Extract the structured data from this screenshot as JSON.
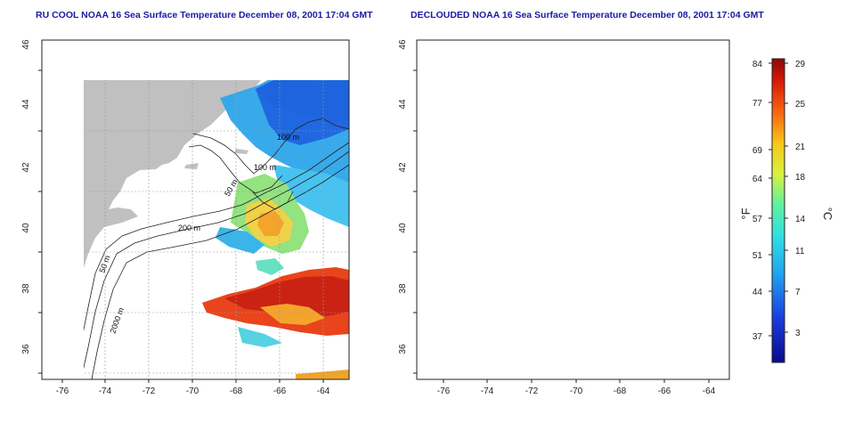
{
  "titles": {
    "left": "RU COOL NOAA 16 Sea Surface Temperature December 08, 2001 17:04 GMT",
    "right": "DECLOUDED NOAA 16 Sea Surface Temperature December 08, 2001 17:04 GMT"
  },
  "axes": {
    "x_ticks": [
      "-76",
      "-74",
      "-72",
      "-70",
      "-68",
      "-66",
      "-64"
    ],
    "y_ticks": [
      "36",
      "38",
      "40",
      "42",
      "44",
      "46"
    ]
  },
  "contour_labels": [
    "100 m",
    "100 m",
    "50 m",
    "200 m",
    "50 m",
    "2000 m"
  ],
  "colorbar": {
    "fahrenheit_ticks": [
      "84",
      "77",
      "69",
      "64",
      "57",
      "51",
      "44",
      "37"
    ],
    "celsius_ticks": [
      "29",
      "25",
      "21",
      "18",
      "14",
      "11",
      "7",
      "3"
    ],
    "unit_f": "°F",
    "unit_c": "°C"
  },
  "colors": {
    "land": "#c0c0c0",
    "water": "#ffffff",
    "title": "#1a1aa6",
    "cold": "#0a1a9a",
    "cool": "#2ea6ea",
    "mid": "#46e0c8",
    "warm": "#f0c820",
    "hot": "#d42008"
  }
}
